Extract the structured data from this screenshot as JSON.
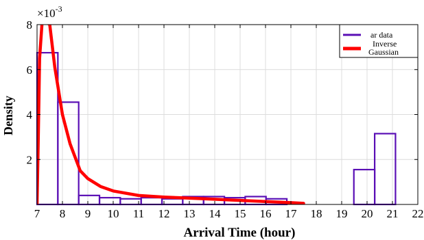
{
  "chart_data": {
    "type": "bar",
    "xlabel": "Arrival Time (hour)",
    "ylabel": "Density",
    "y_exponent_base": "×10",
    "y_exponent_power": "-3",
    "xlim": [
      7,
      22
    ],
    "ylim": [
      0,
      8
    ],
    "x_ticks": [
      "7",
      "8",
      "9",
      "10",
      "11",
      "12",
      "13",
      "14",
      "15",
      "16",
      "17",
      "18",
      "19",
      "20",
      "21",
      "22"
    ],
    "y_ticks": [
      "2",
      "4",
      "6",
      "8"
    ],
    "y_tick_values": [
      2,
      4,
      6,
      8
    ],
    "grid": true,
    "legend_position": "top-right",
    "series": [
      {
        "name": "ar data",
        "kind": "histogram",
        "color": "#5a0fb5",
        "bins": [
          {
            "x0": 7.0,
            "x1": 7.82,
            "value": 6.75
          },
          {
            "x0": 7.82,
            "x1": 8.64,
            "value": 4.55
          },
          {
            "x0": 8.64,
            "x1": 9.46,
            "value": 0.4
          },
          {
            "x0": 9.46,
            "x1": 10.28,
            "value": 0.3
          },
          {
            "x0": 10.28,
            "x1": 11.1,
            "value": 0.25
          },
          {
            "x0": 11.1,
            "x1": 11.92,
            "value": 0.3
          },
          {
            "x0": 11.92,
            "x1": 12.74,
            "value": 0.25
          },
          {
            "x0": 12.74,
            "x1": 13.56,
            "value": 0.35
          },
          {
            "x0": 13.56,
            "x1": 14.38,
            "value": 0.35
          },
          {
            "x0": 14.38,
            "x1": 15.2,
            "value": 0.3
          },
          {
            "x0": 15.2,
            "x1": 16.02,
            "value": 0.35
          },
          {
            "x0": 16.02,
            "x1": 16.84,
            "value": 0.25
          },
          {
            "x0": 19.48,
            "x1": 20.3,
            "value": 1.55
          },
          {
            "x0": 20.3,
            "x1": 21.12,
            "value": 3.15
          }
        ]
      },
      {
        "name": "Inverse Gaussian",
        "name_lines": [
          "Inverse",
          "Gaussian"
        ],
        "kind": "line",
        "color": "#ff0000",
        "x": [
          7.0,
          7.05,
          7.1,
          7.2,
          7.35,
          7.5,
          7.7,
          8.0,
          8.3,
          8.7,
          9.0,
          9.5,
          10.0,
          11.0,
          12.0,
          13.0,
          14.0,
          15.0,
          16.0,
          17.0,
          17.5
        ],
        "y": [
          0.0,
          3.0,
          6.5,
          9.5,
          9.4,
          8.0,
          6.1,
          4.0,
          2.7,
          1.5,
          1.15,
          0.8,
          0.6,
          0.4,
          0.33,
          0.28,
          0.23,
          0.18,
          0.13,
          0.08,
          0.05
        ]
      }
    ]
  }
}
